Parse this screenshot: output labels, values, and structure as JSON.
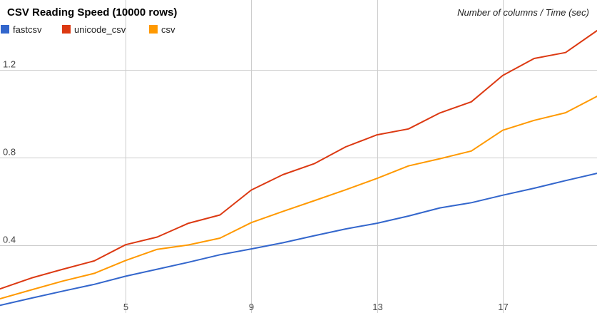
{
  "chart_data": {
    "type": "line",
    "title": "CSV Reading Speed (10000 rows)",
    "subtitle": "Number of columns / Time (sec)",
    "xlabel": "",
    "ylabel": "",
    "grid": true,
    "legend_position": "top-left",
    "xlim": [
      1,
      20
    ],
    "ylim": [
      0.09,
      1.52
    ],
    "x_ticks": [
      5,
      9,
      13,
      17
    ],
    "y_ticks": [
      0.4,
      0.8,
      1.2
    ],
    "y_tick_labels": [
      "0.4",
      "0.8",
      "1.2"
    ],
    "x": [
      1,
      2,
      3,
      4,
      5,
      6,
      7,
      8,
      9,
      10,
      11,
      12,
      13,
      14,
      15,
      16,
      17,
      18,
      19,
      20
    ],
    "series": [
      {
        "name": "fastcsv",
        "color": "#3366cc",
        "values": [
          0.125,
          0.158,
          0.19,
          0.221,
          0.258,
          0.29,
          0.322,
          0.356,
          0.383,
          0.411,
          0.443,
          0.474,
          0.5,
          0.533,
          0.57,
          0.594,
          0.628,
          0.66,
          0.695,
          0.728
        ]
      },
      {
        "name": "unicode_csv",
        "color": "#dc3912",
        "values": [
          0.2,
          0.25,
          0.29,
          0.328,
          0.402,
          0.437,
          0.5,
          0.538,
          0.652,
          0.722,
          0.772,
          0.849,
          0.904,
          0.931,
          1.004,
          1.055,
          1.175,
          1.253,
          1.28,
          1.38
        ]
      },
      {
        "name": "csv",
        "color": "#ff9900",
        "values": [
          0.155,
          0.196,
          0.236,
          0.271,
          0.33,
          0.381,
          0.401,
          0.432,
          0.503,
          0.554,
          0.603,
          0.653,
          0.705,
          0.762,
          0.795,
          0.83,
          0.925,
          0.97,
          1.005,
          1.08
        ]
      }
    ]
  }
}
